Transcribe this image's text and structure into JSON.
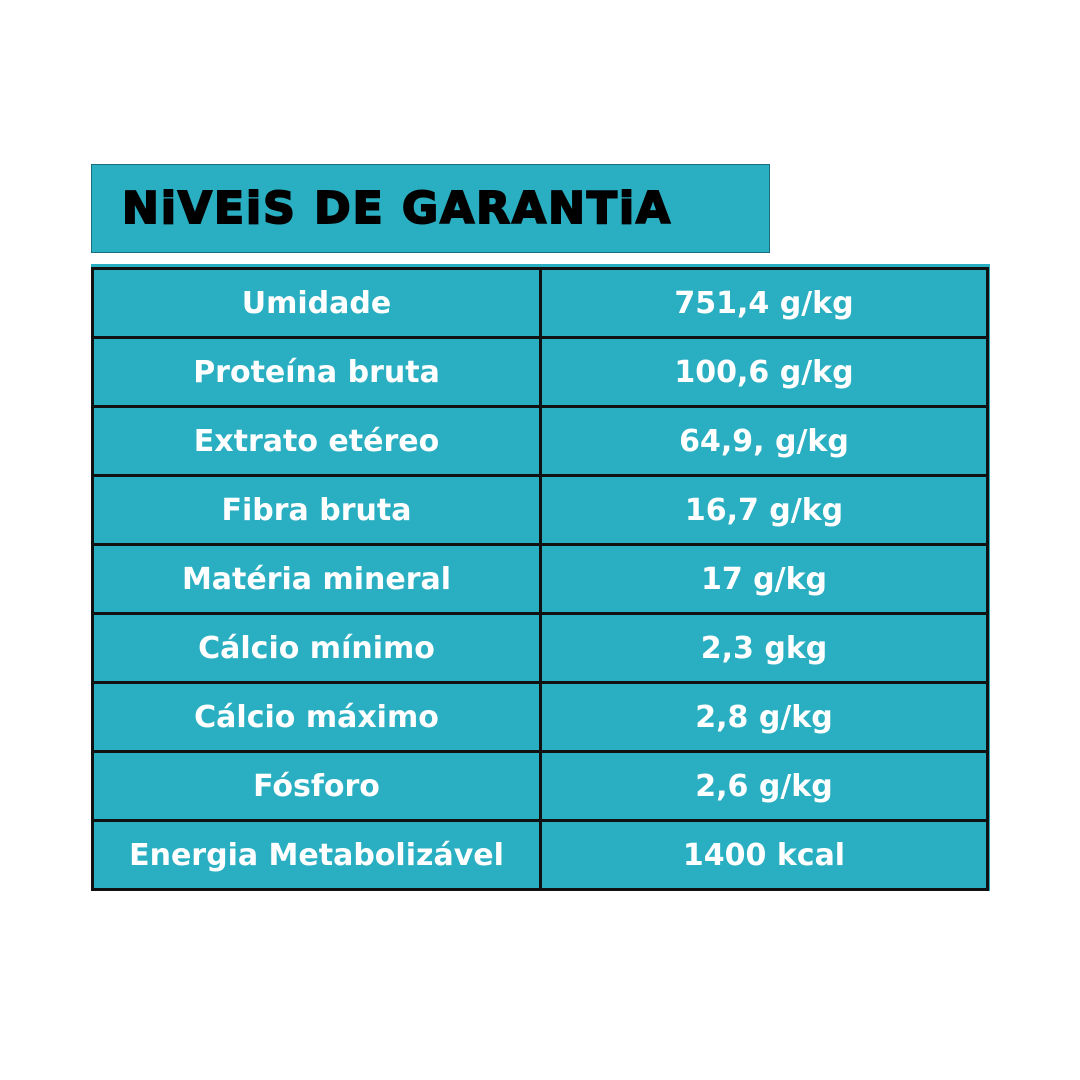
{
  "title": "NiVEiS DE GARANTiA",
  "colors": {
    "accent": "#2aafc2",
    "border": "#111111",
    "text": "#ffffff"
  },
  "rows": [
    {
      "label": "Umidade",
      "value": "751,4 g/kg"
    },
    {
      "label": "Proteína bruta",
      "value": "100,6 g/kg"
    },
    {
      "label": "Extrato etéreo",
      "value": "64,9, g/kg"
    },
    {
      "label": "Fibra bruta",
      "value": "16,7 g/kg"
    },
    {
      "label": "Matéria mineral",
      "value": "17 g/kg"
    },
    {
      "label": "Cálcio mínimo",
      "value": "2,3 gkg"
    },
    {
      "label": "Cálcio máximo",
      "value": "2,8 g/kg"
    },
    {
      "label": "Fósforo",
      "value": "2,6 g/kg"
    },
    {
      "label": "Energia Metabolizável",
      "value": "1400 kcal"
    }
  ]
}
